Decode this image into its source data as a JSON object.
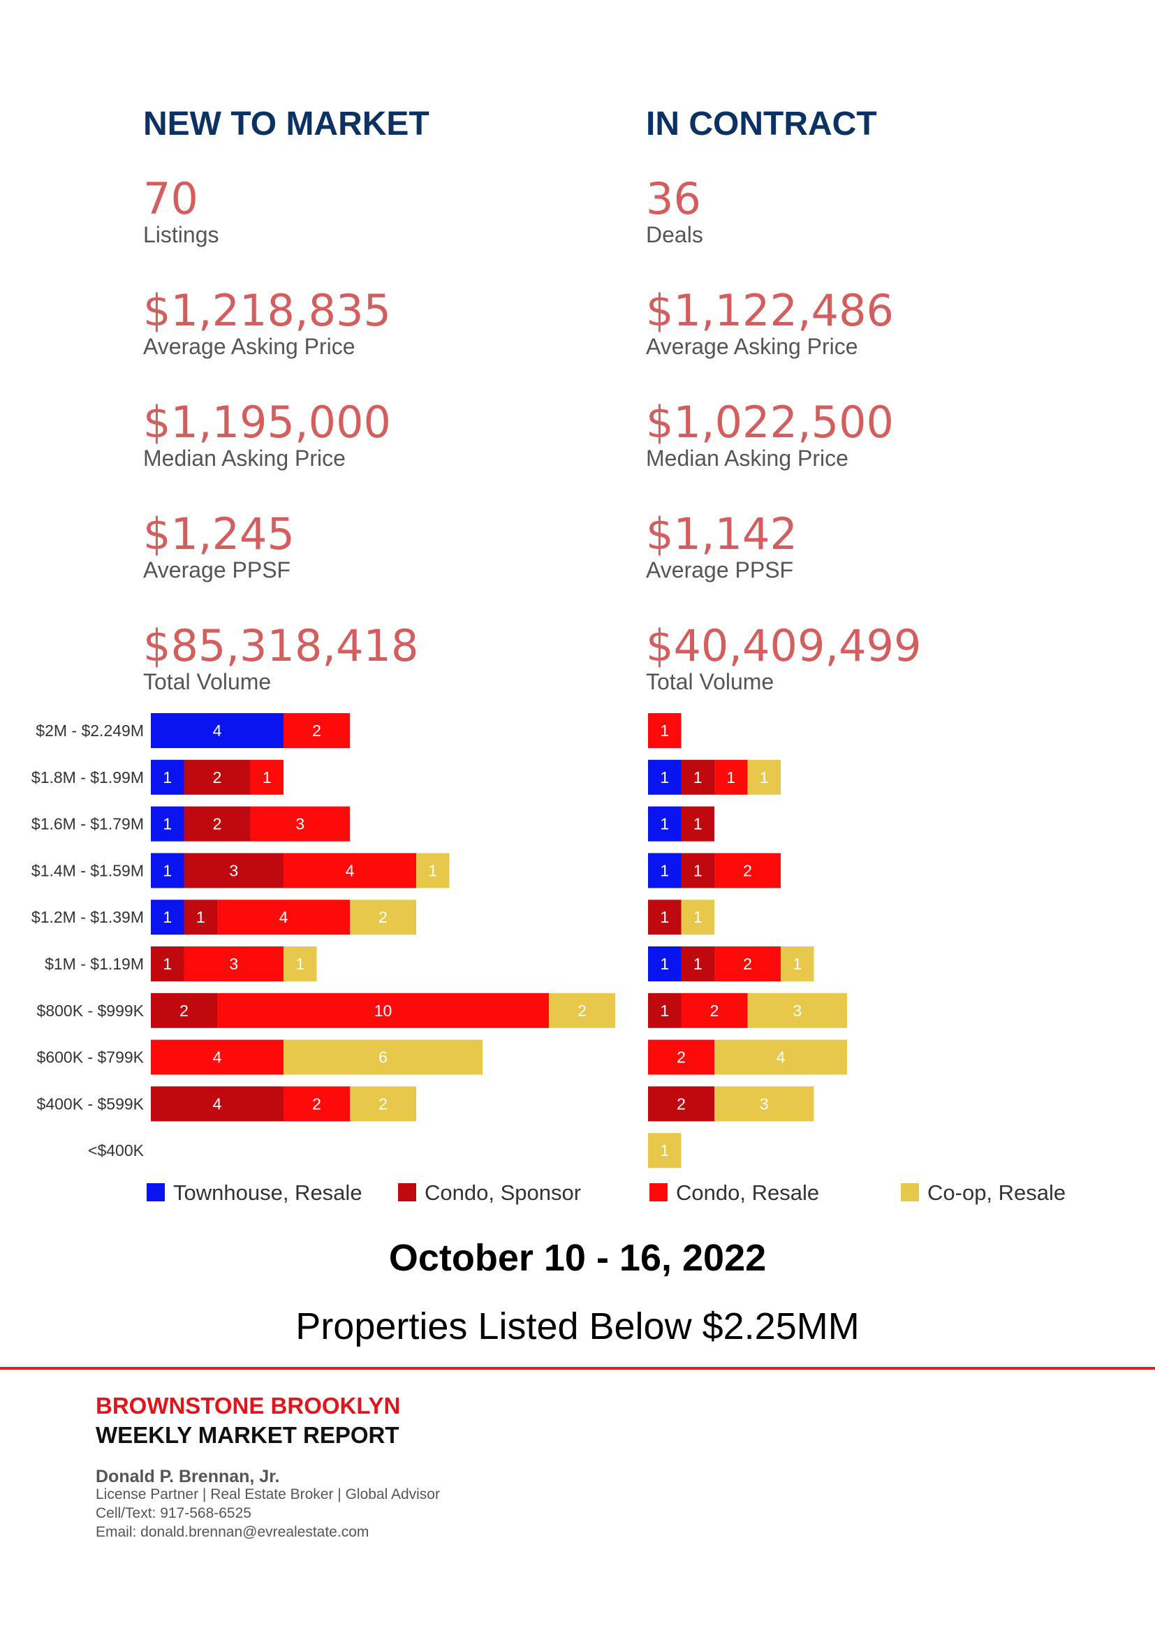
{
  "new_to_market": {
    "title": "NEW TO MARKET",
    "metrics": [
      {
        "value": "70",
        "label": "Listings"
      },
      {
        "value": "$1,218,835",
        "label": "Average Asking Price"
      },
      {
        "value": "$1,195,000",
        "label": "Median Asking Price"
      },
      {
        "value": "$1,245",
        "label": "Average PPSF"
      },
      {
        "value": "$85,318,418",
        "label": "Total Volume"
      }
    ]
  },
  "in_contract": {
    "title": "IN CONTRACT",
    "metrics": [
      {
        "value": "36",
        "label": "Deals"
      },
      {
        "value": "$1,122,486",
        "label": "Average Asking Price"
      },
      {
        "value": "$1,022,500",
        "label": "Median Asking Price"
      },
      {
        "value": "$1,142",
        "label": "Average PPSF"
      },
      {
        "value": "$40,409,499",
        "label": "Total Volume"
      }
    ]
  },
  "chart_data": [
    {
      "type": "bar",
      "stacked": true,
      "orientation": "horizontal",
      "title": "",
      "categories": [
        "$2M - $2.249M",
        "$1.8M - $1.99M",
        "$1.6M - $1.79M",
        "$1.4M - $1.59M",
        "$1.2M - $1.39M",
        "$1M - $1.19M",
        "$800K - $999K",
        "$600K - $799K",
        "$400K - $599K",
        "<$400K"
      ],
      "series": [
        {
          "name": "Townhouse, Resale",
          "color": "#0a14f0",
          "values": [
            4,
            1,
            1,
            1,
            1,
            0,
            0,
            0,
            0,
            0
          ]
        },
        {
          "name": "Condo, Sponsor",
          "color": "#c0090f",
          "values": [
            0,
            2,
            2,
            3,
            1,
            1,
            2,
            0,
            4,
            0
          ]
        },
        {
          "name": "Condo, Resale",
          "color": "#ff0a0a",
          "values": [
            2,
            1,
            3,
            4,
            4,
            3,
            10,
            4,
            2,
            0
          ]
        },
        {
          "name": "Co-op, Resale",
          "color": "#e8c84a",
          "values": [
            0,
            0,
            0,
            1,
            2,
            1,
            2,
            6,
            2,
            0
          ]
        }
      ]
    },
    {
      "type": "bar",
      "stacked": true,
      "orientation": "horizontal",
      "title": "",
      "categories": [
        "$2M - $2.249M",
        "$1.8M - $1.99M",
        "$1.6M - $1.79M",
        "$1.4M - $1.59M",
        "$1.2M - $1.39M",
        "$1M - $1.19M",
        "$800K - $999K",
        "$600K - $799K",
        "$400K - $599K",
        "<$400K"
      ],
      "series": [
        {
          "name": "Townhouse, Resale",
          "color": "#0a14f0",
          "values": [
            0,
            1,
            1,
            1,
            0,
            1,
            0,
            0,
            0,
            0
          ]
        },
        {
          "name": "Condo, Sponsor",
          "color": "#c0090f",
          "values": [
            0,
            1,
            1,
            1,
            1,
            1,
            1,
            0,
            2,
            0
          ]
        },
        {
          "name": "Condo, Resale",
          "color": "#ff0a0a",
          "values": [
            1,
            1,
            0,
            2,
            0,
            2,
            2,
            2,
            0,
            0
          ]
        },
        {
          "name": "Co-op, Resale",
          "color": "#e8c84a",
          "values": [
            0,
            1,
            0,
            0,
            1,
            1,
            3,
            4,
            3,
            1
          ]
        }
      ]
    }
  ],
  "legend": [
    {
      "label": "Townhouse, Resale",
      "color": "#0a14f0"
    },
    {
      "label": "Condo, Sponsor",
      "color": "#c0090f"
    },
    {
      "label": "Condo, Resale",
      "color": "#ff0a0a"
    },
    {
      "label": "Co-op, Resale",
      "color": "#e8c84a"
    }
  ],
  "report": {
    "date_range": "October 10 - 16, 2022",
    "subtitle": "Properties Listed Below $2.25MM",
    "brand_line1": "BROWNSTONE BROOKLYN",
    "brand_line2": "WEEKLY MARKET REPORT",
    "agent_name": "Donald P. Brennan, Jr.",
    "agent_title": "License Partner | Real Estate Broker | Global Advisor",
    "agent_phone": "Cell/Text: 917-568-6525",
    "agent_email": "Email: donald.brennan@evrealestate.com"
  }
}
